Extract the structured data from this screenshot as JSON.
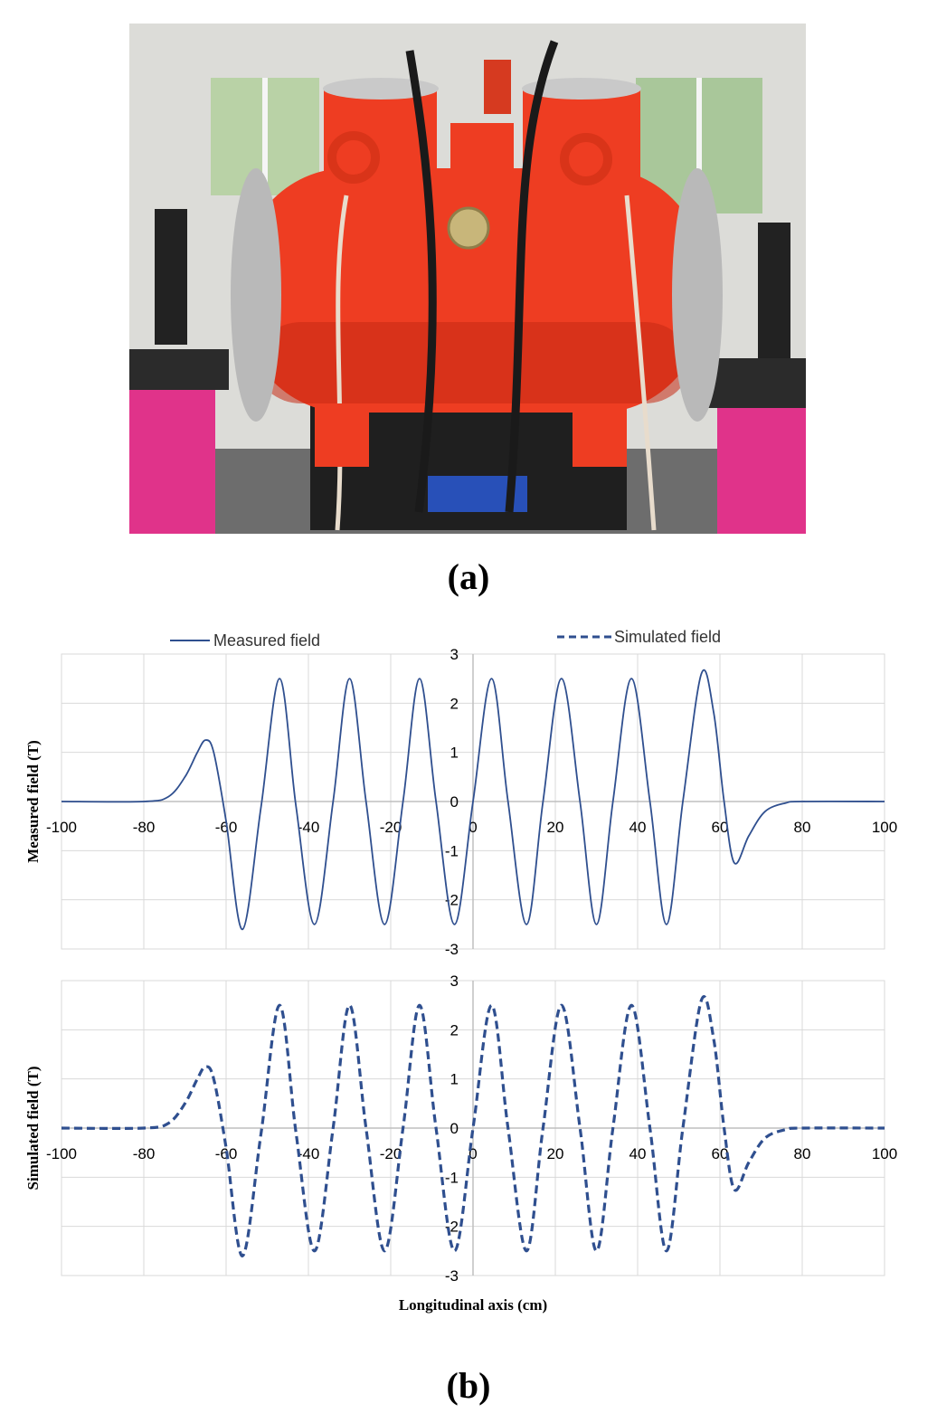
{
  "panels": {
    "a": "(a)",
    "b": "(b)"
  },
  "legend": {
    "measured": "Measured field",
    "simulated": "Simulated field"
  },
  "colors": {
    "line": "#2f4f8f",
    "grid": "#d9d9d9",
    "axis": "#bfbfbf",
    "shell": "#ee3d22",
    "shell_dark": "#c62a14",
    "stand": "#e0338a"
  },
  "chart_data": [
    {
      "type": "line",
      "xlabel": "",
      "ylabel": "Measured field (T)",
      "xlim": [
        -100,
        100
      ],
      "ylim": [
        -3,
        3
      ],
      "xticks": [
        -100,
        -80,
        -60,
        -40,
        -20,
        0,
        20,
        40,
        60,
        80,
        100
      ],
      "yticks": [
        3,
        2,
        1,
        0,
        -1,
        -2,
        -3
      ],
      "grid": true,
      "series": [
        {
          "name": "Measured field",
          "style": "solid",
          "x": [
            -100,
            -80,
            -74,
            -70,
            -67,
            -65,
            -63,
            -60,
            -56,
            -51.5,
            -47,
            -43,
            -38.5,
            -34,
            -30,
            -26,
            -21.5,
            -17,
            -13,
            -9,
            -4.5,
            0,
            4.5,
            8.5,
            13,
            17,
            21.5,
            26,
            30,
            34,
            38.5,
            43,
            47,
            51,
            55.5,
            58.5,
            61,
            63.5,
            67,
            71,
            76,
            80,
            100
          ],
          "y": [
            0,
            0,
            0.1,
            0.5,
            1.0,
            1.25,
            1.0,
            -0.4,
            -2.6,
            -0.1,
            2.5,
            -0.1,
            -2.5,
            0,
            2.5,
            0,
            -2.5,
            0,
            2.5,
            0,
            -2.5,
            0,
            2.5,
            0,
            -2.5,
            0,
            2.5,
            0,
            -2.5,
            0,
            2.5,
            0,
            -2.5,
            0,
            2.6,
            1.8,
            0.0,
            -1.25,
            -0.7,
            -0.2,
            -0.03,
            0,
            0
          ]
        }
      ]
    },
    {
      "type": "line",
      "xlabel": "Longitudinal  axis (cm)",
      "ylabel": "Simulated field (T)",
      "xlim": [
        -100,
        100
      ],
      "ylim": [
        -3,
        3
      ],
      "xticks": [
        -100,
        -80,
        -60,
        -40,
        -20,
        0,
        20,
        40,
        60,
        80,
        100
      ],
      "yticks": [
        3,
        2,
        1,
        0,
        -1,
        -2,
        -3
      ],
      "grid": true,
      "series": [
        {
          "name": "Simulated field",
          "style": "dashed",
          "x": [
            -100,
            -80,
            -74,
            -70,
            -67,
            -65,
            -63,
            -60,
            -56,
            -51.5,
            -47,
            -43,
            -38.5,
            -34,
            -30,
            -26,
            -21.5,
            -17,
            -13,
            -9,
            -4.5,
            0,
            4.5,
            8.5,
            13,
            17,
            21.5,
            26,
            30,
            34,
            38.5,
            43,
            47,
            51,
            55.5,
            58.5,
            61,
            63.5,
            67,
            71,
            76,
            80,
            100
          ],
          "y": [
            0,
            0,
            0.1,
            0.5,
            1.0,
            1.25,
            1.0,
            -0.4,
            -2.6,
            -0.1,
            2.5,
            -0.1,
            -2.5,
            0,
            2.5,
            0,
            -2.5,
            0,
            2.5,
            0,
            -2.5,
            0,
            2.5,
            0,
            -2.5,
            0,
            2.5,
            0,
            -2.5,
            0,
            2.5,
            0,
            -2.5,
            0,
            2.6,
            1.8,
            0.0,
            -1.25,
            -0.7,
            -0.2,
            -0.03,
            0,
            0
          ]
        }
      ]
    }
  ]
}
